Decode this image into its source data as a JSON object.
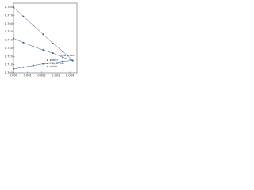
{
  "chart_data": {
    "type": "line",
    "x": [
      0,
      0.0007,
      0.0014,
      0.0021,
      0.0028,
      0.0035,
      0.0042
    ],
    "series": [
      {
        "name": "Water",
        "color": "#2f5f8f",
        "values": [
          0.78,
          0.769,
          0.758,
          0.747,
          0.736,
          0.726,
          0.715
        ]
      },
      {
        "name": "Polyamide",
        "color": "#2f5f8f",
        "values": [
          0.742,
          0.737,
          0.732,
          0.728,
          0.724,
          0.719,
          0.715
        ]
      },
      {
        "name": "other",
        "color": "#2f5f8f",
        "values": [
          0.705,
          0.707,
          0.709,
          0.711,
          0.712,
          0.714,
          0.715
        ]
      }
    ],
    "annotation": "Low water",
    "xlim": [
      0,
      0.0045
    ],
    "xticks": [
      {
        "value": 0,
        "label": "0.000"
      },
      {
        "value": 0.001,
        "label": "0.001"
      },
      {
        "value": 0.002,
        "label": "0.002"
      },
      {
        "value": 0.003,
        "label": "0.003"
      },
      {
        "value": 0.004,
        "label": "0.004"
      }
    ],
    "ylim": [
      0.7,
      0.785
    ],
    "yticks": [
      {
        "value": 0.7,
        "label": "0.700"
      },
      {
        "value": 0.71,
        "label": "0.710"
      },
      {
        "value": 0.72,
        "label": "0.720"
      },
      {
        "value": 0.73,
        "label": "0.730"
      },
      {
        "value": 0.74,
        "label": "0.740"
      },
      {
        "value": 0.75,
        "label": "0.750"
      },
      {
        "value": 0.76,
        "label": "0.760"
      },
      {
        "value": 0.77,
        "label": "0.770"
      },
      {
        "value": 0.78,
        "label": "0.780"
      }
    ],
    "grid": false,
    "legend": "lower-right"
  }
}
